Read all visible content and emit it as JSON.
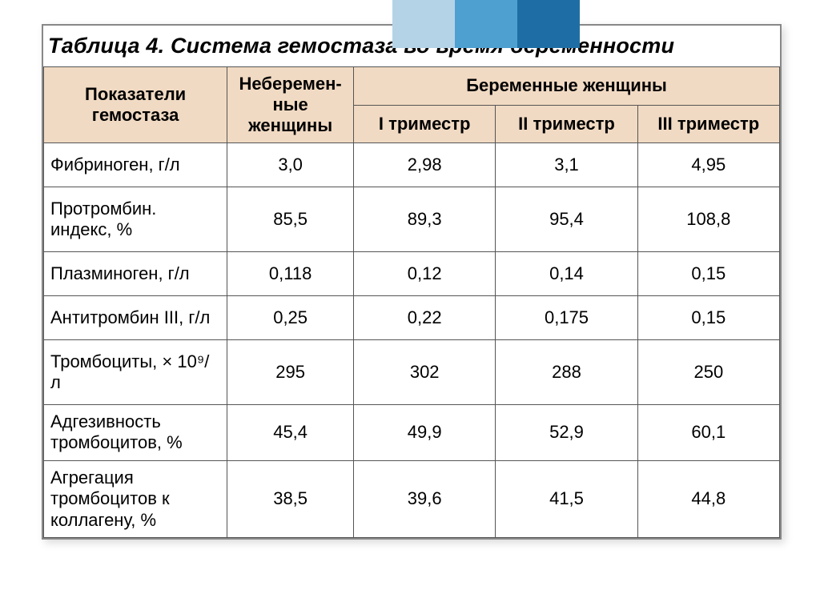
{
  "decor": {
    "colors": [
      "#b5d3e7",
      "#4ea0d1",
      "#1e6ea5"
    ]
  },
  "table": {
    "title": "Таблица 4. Система гемостаза во время беременности",
    "header_bg": "#f1dac3",
    "headers": {
      "indicator": "Показатели гемостаза",
      "nonpregnant": "Неберемен-\nные женщины",
      "pregnant_group": "Беременные женщины",
      "tri1": "I триместр",
      "tri2": "II триместр",
      "tri3": "III триместр"
    },
    "rows": [
      {
        "label": "Фибриноген, г/л",
        "vals": [
          "3,0",
          "2,98",
          "3,1",
          "4,95"
        ]
      },
      {
        "label": "Протромбин. индекс, %",
        "vals": [
          "85,5",
          "89,3",
          "95,4",
          "108,8"
        ]
      },
      {
        "label": "Плазминоген, г/л",
        "vals": [
          "0,118",
          "0,12",
          "0,14",
          "0,15"
        ]
      },
      {
        "label": "Антитромбин III, г/л",
        "vals": [
          "0,25",
          "0,22",
          "0,175",
          "0,15"
        ]
      },
      {
        "label": "Тромбоциты, × 10⁹/л",
        "vals": [
          "295",
          "302",
          "288",
          "250"
        ]
      },
      {
        "label": "Адгезивность тромбоцитов, %",
        "vals": [
          "45,4",
          "49,9",
          "52,9",
          "60,1"
        ],
        "tight": true
      },
      {
        "label": "Агрегация тромбоцитов к коллагену, %",
        "vals": [
          "38,5",
          "39,6",
          "41,5",
          "44,8"
        ],
        "tight": true
      }
    ]
  }
}
